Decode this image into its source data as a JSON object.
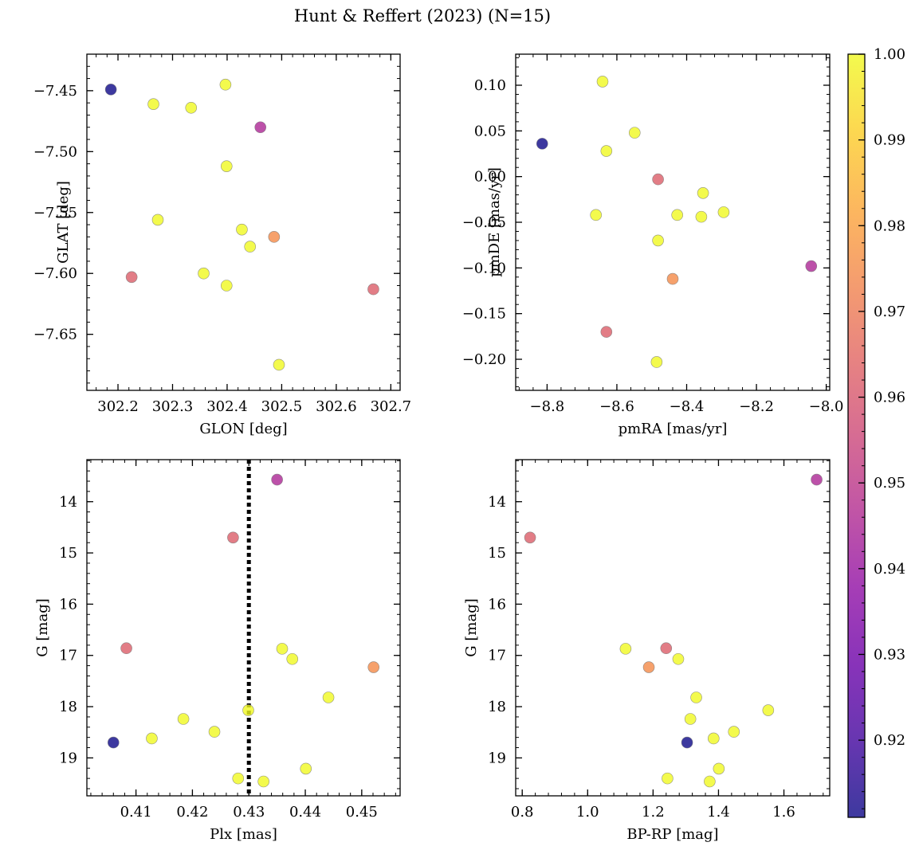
{
  "figure": {
    "suptitle": "Hunt & Reffert (2023) (N=15)",
    "colormap": "plasma",
    "marker_edge": "#777777",
    "marker_alpha": 0.8
  },
  "colorbar": {
    "vmin": 0.911,
    "vmax": 1.0,
    "ticks": [
      0.92,
      0.93,
      0.94,
      0.95,
      0.96,
      0.97,
      0.98,
      0.99,
      1.0
    ],
    "tick_labels": [
      "0.92",
      "0.93",
      "0.94",
      "0.95",
      "0.96",
      "0.97",
      "0.98",
      "0.99",
      "1.00"
    ]
  },
  "chart_data": [
    {
      "type": "scatter",
      "xlabel": "GLON [deg]",
      "ylabel": "GLAT [deg]",
      "xlim": [
        302.143,
        302.717
      ],
      "ylim": [
        -7.696,
        -7.42
      ],
      "xticks": [
        302.2,
        302.3,
        302.4,
        302.5,
        302.6,
        302.7
      ],
      "xtick_labels": [
        "302.2",
        "302.3",
        "302.4",
        "302.5",
        "302.6",
        "302.7"
      ],
      "yticks": [
        -7.45,
        -7.5,
        -7.55,
        -7.6,
        -7.65
      ],
      "ytick_labels": [
        "−7.45",
        "−7.50",
        "−7.55",
        "−7.60",
        "−7.65"
      ],
      "grid": false,
      "points": [
        {
          "x": 302.187,
          "y": -7.449,
          "c": 0.911
        },
        {
          "x": 302.265,
          "y": -7.461,
          "c": 1.0
        },
        {
          "x": 302.334,
          "y": -7.464,
          "c": 1.0
        },
        {
          "x": 302.397,
          "y": -7.445,
          "c": 1.0
        },
        {
          "x": 302.461,
          "y": -7.48,
          "c": 0.945
        },
        {
          "x": 302.399,
          "y": -7.512,
          "c": 1.0
        },
        {
          "x": 302.273,
          "y": -7.556,
          "c": 1.0
        },
        {
          "x": 302.427,
          "y": -7.564,
          "c": 1.0
        },
        {
          "x": 302.486,
          "y": -7.57,
          "c": 0.975
        },
        {
          "x": 302.442,
          "y": -7.578,
          "c": 1.0
        },
        {
          "x": 302.225,
          "y": -7.603,
          "c": 0.962
        },
        {
          "x": 302.357,
          "y": -7.6,
          "c": 1.0
        },
        {
          "x": 302.399,
          "y": -7.61,
          "c": 1.0
        },
        {
          "x": 302.668,
          "y": -7.613,
          "c": 0.962
        },
        {
          "x": 302.495,
          "y": -7.675,
          "c": 1.0
        }
      ]
    },
    {
      "type": "scatter",
      "xlabel": "pmRA [mas/yr]",
      "ylabel": "pmDE [mas/yr]",
      "xlim": [
        -8.89,
        -7.99
      ],
      "ylim": [
        -0.234,
        0.134
      ],
      "xticks": [
        -8.8,
        -8.6,
        -8.4,
        -8.2,
        -8.0
      ],
      "xtick_labels": [
        "−8.8",
        "−8.6",
        "−8.4",
        "−8.2",
        "−8.0"
      ],
      "yticks": [
        0.1,
        0.05,
        0.0,
        -0.05,
        -0.1,
        -0.15,
        -0.2
      ],
      "ytick_labels": [
        "0.10",
        "0.05",
        "0.00",
        "−0.05",
        "−0.10",
        "−0.15",
        "−0.20"
      ],
      "grid": false,
      "points": [
        {
          "x": -8.814,
          "y": 0.036,
          "c": 0.911
        },
        {
          "x": -8.641,
          "y": 0.104,
          "c": 1.0
        },
        {
          "x": -8.549,
          "y": 0.048,
          "c": 1.0
        },
        {
          "x": -8.63,
          "y": 0.028,
          "c": 1.0
        },
        {
          "x": -8.482,
          "y": -0.003,
          "c": 0.962
        },
        {
          "x": -8.353,
          "y": -0.018,
          "c": 1.0
        },
        {
          "x": -8.66,
          "y": -0.042,
          "c": 1.0
        },
        {
          "x": -8.427,
          "y": -0.042,
          "c": 1.0
        },
        {
          "x": -8.358,
          "y": -0.044,
          "c": 1.0
        },
        {
          "x": -8.294,
          "y": -0.039,
          "c": 1.0
        },
        {
          "x": -8.482,
          "y": -0.07,
          "c": 1.0
        },
        {
          "x": -8.043,
          "y": -0.098,
          "c": 0.945
        },
        {
          "x": -8.44,
          "y": -0.112,
          "c": 0.975
        },
        {
          "x": -8.63,
          "y": -0.17,
          "c": 0.962
        },
        {
          "x": -8.486,
          "y": -0.203,
          "c": 1.0
        }
      ]
    },
    {
      "type": "scatter",
      "xlabel": "Plx [mas]",
      "ylabel": "G [mag]",
      "xlim": [
        0.4013,
        0.4568
      ],
      "ylim": [
        19.74,
        13.18
      ],
      "y_inverted": true,
      "xticks": [
        0.41,
        0.42,
        0.43,
        0.44,
        0.45
      ],
      "xtick_labels": [
        "0.41",
        "0.42",
        "0.43",
        "0.44",
        "0.45"
      ],
      "yticks": [
        14,
        15,
        16,
        17,
        18,
        19
      ],
      "ytick_labels": [
        "14",
        "15",
        "16",
        "17",
        "18",
        "19"
      ],
      "grid": false,
      "vline": {
        "x": 0.43,
        "style": "dotted"
      },
      "points": [
        {
          "x": 0.435,
          "y": 13.57,
          "c": 0.945
        },
        {
          "x": 0.4272,
          "y": 14.7,
          "c": 0.962
        },
        {
          "x": 0.4083,
          "y": 16.86,
          "c": 0.962
        },
        {
          "x": 0.4359,
          "y": 16.87,
          "c": 1.0
        },
        {
          "x": 0.4377,
          "y": 17.07,
          "c": 1.0
        },
        {
          "x": 0.4521,
          "y": 17.23,
          "c": 0.975
        },
        {
          "x": 0.4441,
          "y": 17.82,
          "c": 1.0
        },
        {
          "x": 0.4299,
          "y": 18.07,
          "c": 1.0
        },
        {
          "x": 0.4184,
          "y": 18.24,
          "c": 1.0
        },
        {
          "x": 0.4239,
          "y": 18.49,
          "c": 1.0
        },
        {
          "x": 0.4128,
          "y": 18.62,
          "c": 1.0
        },
        {
          "x": 0.406,
          "y": 18.7,
          "c": 0.911
        },
        {
          "x": 0.4401,
          "y": 19.21,
          "c": 1.0
        },
        {
          "x": 0.4281,
          "y": 19.4,
          "c": 1.0
        },
        {
          "x": 0.4326,
          "y": 19.46,
          "c": 1.0
        }
      ]
    },
    {
      "type": "scatter",
      "xlabel": "BP-RP [mag]",
      "ylabel": "G [mag]",
      "xlim": [
        0.78,
        1.74
      ],
      "ylim": [
        19.74,
        13.18
      ],
      "y_inverted": true,
      "xticks": [
        0.8,
        1.0,
        1.2,
        1.4,
        1.6
      ],
      "xtick_labels": [
        "0.8",
        "1.0",
        "1.2",
        "1.4",
        "1.6"
      ],
      "yticks": [
        14,
        15,
        16,
        17,
        18,
        19
      ],
      "ytick_labels": [
        "14",
        "15",
        "16",
        "17",
        "18",
        "19"
      ],
      "grid": false,
      "points": [
        {
          "x": 1.7,
          "y": 13.57,
          "c": 0.945
        },
        {
          "x": 0.824,
          "y": 14.7,
          "c": 0.962
        },
        {
          "x": 1.116,
          "y": 16.87,
          "c": 1.0
        },
        {
          "x": 1.24,
          "y": 16.86,
          "c": 0.962
        },
        {
          "x": 1.277,
          "y": 17.07,
          "c": 1.0
        },
        {
          "x": 1.187,
          "y": 17.23,
          "c": 0.975
        },
        {
          "x": 1.332,
          "y": 17.82,
          "c": 1.0
        },
        {
          "x": 1.552,
          "y": 18.07,
          "c": 1.0
        },
        {
          "x": 1.314,
          "y": 18.24,
          "c": 1.0
        },
        {
          "x": 1.447,
          "y": 18.49,
          "c": 1.0
        },
        {
          "x": 1.385,
          "y": 18.62,
          "c": 1.0
        },
        {
          "x": 1.304,
          "y": 18.7,
          "c": 0.911
        },
        {
          "x": 1.401,
          "y": 19.21,
          "c": 1.0
        },
        {
          "x": 1.244,
          "y": 19.4,
          "c": 1.0
        },
        {
          "x": 1.373,
          "y": 19.46,
          "c": 1.0
        }
      ]
    }
  ]
}
